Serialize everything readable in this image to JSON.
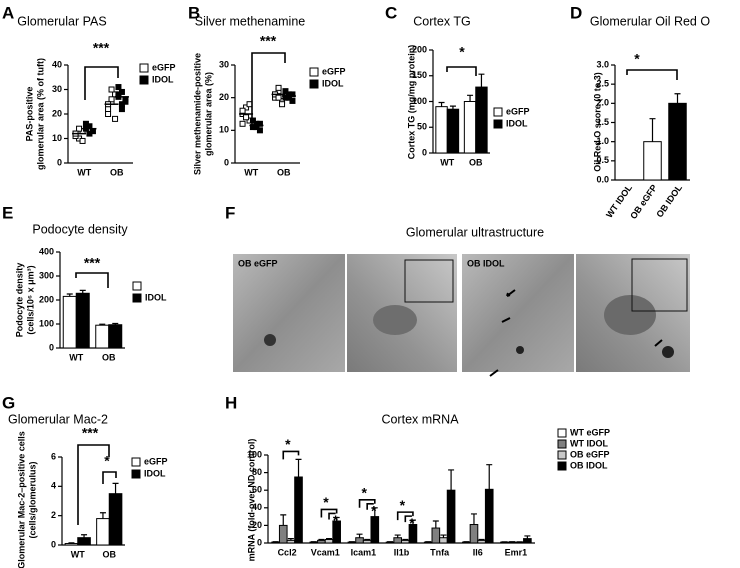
{
  "chart_data": [
    {
      "panel": "A",
      "type": "dot",
      "title": "Glomerular PAS",
      "ylabel": [
        "PAS-positive",
        "glomerular area (% of tuft)"
      ],
      "categories": [
        "WT",
        "OB"
      ],
      "ylim": [
        0,
        40
      ],
      "yticks": [
        0,
        10,
        20,
        30,
        40
      ],
      "series": [
        {
          "name": "eGFP",
          "color": "#ffffff",
          "values": [
            [
              12,
              10,
              13,
              11,
              14,
              9,
              12
            ],
            [
              22,
              25,
              28,
              20,
              26,
              18,
              24,
              30
            ]
          ],
          "means": [
            12,
            24
          ]
        },
        {
          "name": "IDOL",
          "color": "#000000",
          "values": [
            [
              14,
              15,
              13,
              16,
              12
            ],
            [
              27,
              29,
              25,
              31,
              22,
              26,
              28,
              24
            ]
          ],
          "means": [
            14,
            27
          ]
        }
      ],
      "annotations": [
        "***"
      ]
    },
    {
      "panel": "B",
      "type": "dot",
      "title": "Silver methenamine",
      "ylabel": [
        "Silver methenamide-positive",
        "glomerular area (%)"
      ],
      "categories": [
        "WT",
        "OB"
      ],
      "ylim": [
        0,
        30
      ],
      "yticks": [
        0,
        10,
        20,
        30
      ],
      "series": [
        {
          "name": "eGFP",
          "color": "#ffffff",
          "values": [
            [
              15,
              17,
              13,
              16,
              14,
              18,
              12
            ],
            [
              20,
              22,
              19,
              21,
              23,
              18,
              21,
              20
            ]
          ],
          "means": [
            15,
            21
          ]
        },
        {
          "name": "IDOL",
          "color": "#000000",
          "values": [
            [
              11,
              12,
              10,
              13,
              11,
              12
            ],
            [
              20,
              21,
              19,
              22,
              20,
              21
            ]
          ],
          "means": [
            11.5,
            20.5
          ]
        }
      ],
      "annotations": [
        "***"
      ]
    },
    {
      "panel": "C",
      "type": "bar",
      "title": "Cortex TG",
      "ylabel": [
        "Cortex TG (mg/mg protein)"
      ],
      "categories": [
        "WT",
        "OB"
      ],
      "ylim": [
        0,
        200
      ],
      "yticks": [
        0,
        50,
        100,
        150,
        200
      ],
      "series": [
        {
          "name": "eGFP",
          "color": "#ffffff",
          "values": [
            90,
            100
          ],
          "errors": [
            8,
            12
          ]
        },
        {
          "name": "IDOL",
          "color": "#000000",
          "values": [
            85,
            128
          ],
          "errors": [
            6,
            25
          ]
        }
      ],
      "annotations": [
        "*"
      ]
    },
    {
      "panel": "D",
      "type": "bar",
      "title": "Glomerular Oil Red O",
      "ylabel": [
        "Oil Red O score (0 to 3)"
      ],
      "categories": [
        "WT IDOL",
        "OB eGFP",
        "OB IDOL"
      ],
      "values": [
        0,
        1.0,
        2.0
      ],
      "errors": [
        0,
        0.6,
        0.25
      ],
      "colors": [
        "#000000",
        "#ffffff",
        "#000000"
      ],
      "ylim": [
        0,
        3
      ],
      "yticks": [
        {
          "value": 0,
          "label": "0.0"
        },
        0.5,
        {
          "value": 1,
          "label": "1.0"
        },
        1.5,
        {
          "value": 2,
          "label": "2.0"
        },
        2.5,
        {
          "value": 3,
          "label": "3.0"
        }
      ],
      "annotations": [
        "*"
      ]
    },
    {
      "panel": "E",
      "type": "bar",
      "title": "Podocyte density",
      "ylabel": [
        "Podocyte density",
        "(cells/10⁶ x μm³)"
      ],
      "categories": [
        "WT",
        "OB"
      ],
      "ylim": [
        0,
        400
      ],
      "yticks": [
        0,
        100,
        200,
        300,
        400
      ],
      "series": [
        {
          "color": "#ffffff",
          "values": [
            215,
            95
          ],
          "errors": [
            10,
            4
          ]
        },
        {
          "name": "IDOL",
          "color": "#000000",
          "values": [
            228,
            97
          ],
          "errors": [
            12,
            5
          ]
        }
      ],
      "annotations": [
        "***"
      ]
    },
    {
      "panel": "G",
      "type": "bar",
      "title": "Glomerular Mac-2",
      "ylabel": [
        "Glomerular Mac-2–positive cells",
        "(cells/glomerulus)"
      ],
      "categories": [
        "WT",
        "OB"
      ],
      "ylim": [
        0,
        6
      ],
      "yticks": [
        0,
        2,
        4,
        6
      ],
      "series": [
        {
          "name": "eGFP",
          "color": "#ffffff",
          "values": [
            0.1,
            1.8
          ],
          "errors": [
            0.05,
            0.4
          ]
        },
        {
          "name": "IDOL",
          "color": "#000000",
          "values": [
            0.5,
            3.5
          ],
          "errors": [
            0.2,
            0.7
          ]
        }
      ],
      "annotations": [
        "***",
        "*"
      ]
    },
    {
      "panel": "H",
      "type": "bar",
      "title": "Cortex mRNA",
      "ylabel": [
        "mRNA (fold-over ND control)"
      ],
      "categories": [
        "Ccl2",
        "Vcam1",
        "Icam1",
        "Il1b",
        "Tnfa",
        "Il6",
        "Emr1"
      ],
      "ylim": [
        0,
        100
      ],
      "yticks": [
        0,
        20,
        40,
        60,
        80,
        100
      ],
      "series": [
        {
          "name": "WT eGFP",
          "color": "#ffffff",
          "values": [
            1,
            1,
            1,
            1,
            1,
            1,
            1
          ],
          "errors": [
            0.5,
            0.5,
            0.5,
            0.5,
            0.5,
            0.5,
            0.3
          ]
        },
        {
          "name": "WT IDOL",
          "color": "#808080",
          "values": [
            20,
            3,
            6,
            6,
            17,
            21,
            1
          ],
          "errors": [
            12,
            1,
            4,
            3,
            8,
            12,
            0.5
          ]
        },
        {
          "name": "OB eGFP",
          "color": "#c8c8c8",
          "values": [
            3,
            4,
            3,
            3,
            6,
            3,
            1
          ],
          "errors": [
            2,
            1,
            1,
            1,
            3,
            1,
            0.3
          ]
        },
        {
          "name": "OB IDOL",
          "color": "#000000",
          "values": [
            75,
            25,
            30,
            21,
            60,
            61,
            5
          ],
          "errors": [
            20,
            4,
            10,
            5,
            23,
            28,
            3
          ]
        }
      ],
      "annotations": [
        "*",
        "*",
        "*",
        "*",
        "*",
        "*",
        "*"
      ]
    }
  ],
  "micrograph_panel": {
    "panel": "F",
    "title": "Glomerular ultrastructure",
    "labels": [
      "OB eGFP",
      "OB IDOL"
    ]
  }
}
